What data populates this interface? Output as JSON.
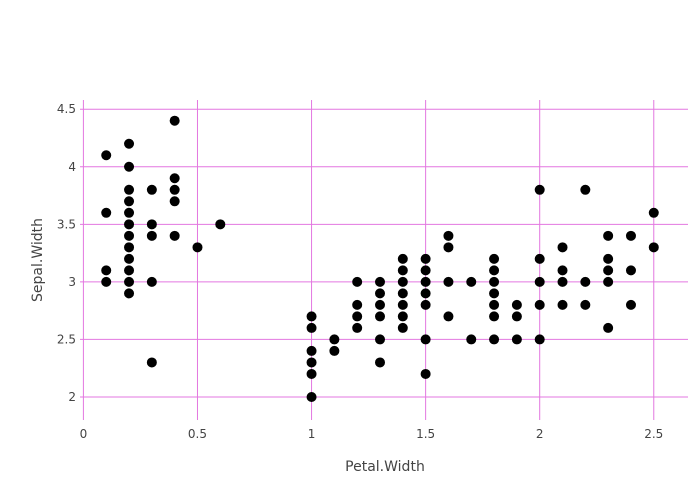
{
  "chart_data": {
    "type": "scatter",
    "title": "",
    "xlabel": "Petal.Width",
    "ylabel": "Sepal.Width",
    "xlim": [
      -0.05,
      2.65
    ],
    "ylim": [
      1.8,
      4.58
    ],
    "xticks": [
      0,
      0.5,
      1,
      1.5,
      2,
      2.5
    ],
    "xtick_labels": [
      "0",
      "0.5",
      "1",
      "1.5",
      "2",
      "2.5"
    ],
    "yticks": [
      2,
      2.5,
      3,
      3.5,
      4,
      4.5
    ],
    "ytick_labels": [
      "2",
      "2.5",
      "3",
      "3.5",
      "4",
      "4.5"
    ],
    "grid": true,
    "grid_color": "#e377e0",
    "marker_color": "#000000",
    "axis_text_color": "#444444",
    "series": [
      {
        "points": [
          [
            0.1,
            4.1
          ],
          [
            0.1,
            3.6
          ],
          [
            0.1,
            3.1
          ],
          [
            0.1,
            3.0
          ],
          [
            0.2,
            4.2
          ],
          [
            0.2,
            4.0
          ],
          [
            0.2,
            3.8
          ],
          [
            0.2,
            3.7
          ],
          [
            0.2,
            3.6
          ],
          [
            0.2,
            3.5
          ],
          [
            0.2,
            3.4
          ],
          [
            0.2,
            3.3
          ],
          [
            0.2,
            3.2
          ],
          [
            0.2,
            3.1
          ],
          [
            0.2,
            3.0
          ],
          [
            0.2,
            2.9
          ],
          [
            0.3,
            3.8
          ],
          [
            0.3,
            3.5
          ],
          [
            0.3,
            3.4
          ],
          [
            0.3,
            3.0
          ],
          [
            0.3,
            2.3
          ],
          [
            0.4,
            4.4
          ],
          [
            0.4,
            3.9
          ],
          [
            0.4,
            3.8
          ],
          [
            0.4,
            3.7
          ],
          [
            0.4,
            3.4
          ],
          [
            0.5,
            3.3
          ],
          [
            0.6,
            3.5
          ],
          [
            1.0,
            2.7
          ],
          [
            1.0,
            2.6
          ],
          [
            1.0,
            2.4
          ],
          [
            1.0,
            2.3
          ],
          [
            1.0,
            2.2
          ],
          [
            1.0,
            2.0
          ],
          [
            1.1,
            2.5
          ],
          [
            1.1,
            2.4
          ],
          [
            1.2,
            3.0
          ],
          [
            1.2,
            2.8
          ],
          [
            1.2,
            2.7
          ],
          [
            1.2,
            2.6
          ],
          [
            1.3,
            3.0
          ],
          [
            1.3,
            2.9
          ],
          [
            1.3,
            2.8
          ],
          [
            1.3,
            2.7
          ],
          [
            1.3,
            2.5
          ],
          [
            1.3,
            2.3
          ],
          [
            1.4,
            3.2
          ],
          [
            1.4,
            3.1
          ],
          [
            1.4,
            3.0
          ],
          [
            1.4,
            2.9
          ],
          [
            1.4,
            2.8
          ],
          [
            1.4,
            2.7
          ],
          [
            1.4,
            2.6
          ],
          [
            1.5,
            3.2
          ],
          [
            1.5,
            3.1
          ],
          [
            1.5,
            3.0
          ],
          [
            1.5,
            2.9
          ],
          [
            1.5,
            2.8
          ],
          [
            1.5,
            2.5
          ],
          [
            1.5,
            2.2
          ],
          [
            1.6,
            3.4
          ],
          [
            1.6,
            3.3
          ],
          [
            1.6,
            3.0
          ],
          [
            1.6,
            2.7
          ],
          [
            1.7,
            3.0
          ],
          [
            1.7,
            2.5
          ],
          [
            1.8,
            3.2
          ],
          [
            1.8,
            3.1
          ],
          [
            1.8,
            3.0
          ],
          [
            1.8,
            2.9
          ],
          [
            1.8,
            2.8
          ],
          [
            1.8,
            2.7
          ],
          [
            1.8,
            2.5
          ],
          [
            1.9,
            2.8
          ],
          [
            1.9,
            2.7
          ],
          [
            1.9,
            2.5
          ],
          [
            2.0,
            3.8
          ],
          [
            2.0,
            3.2
          ],
          [
            2.0,
            3.0
          ],
          [
            2.0,
            2.8
          ],
          [
            2.0,
            2.5
          ],
          [
            2.1,
            3.3
          ],
          [
            2.1,
            3.1
          ],
          [
            2.1,
            3.0
          ],
          [
            2.1,
            2.8
          ],
          [
            2.2,
            3.8
          ],
          [
            2.2,
            3.0
          ],
          [
            2.2,
            2.8
          ],
          [
            2.3,
            3.4
          ],
          [
            2.3,
            3.2
          ],
          [
            2.3,
            3.1
          ],
          [
            2.3,
            3.0
          ],
          [
            2.3,
            2.6
          ],
          [
            2.4,
            3.4
          ],
          [
            2.4,
            3.1
          ],
          [
            2.4,
            2.8
          ],
          [
            2.5,
            3.6
          ],
          [
            2.5,
            3.3
          ]
        ]
      }
    ]
  }
}
